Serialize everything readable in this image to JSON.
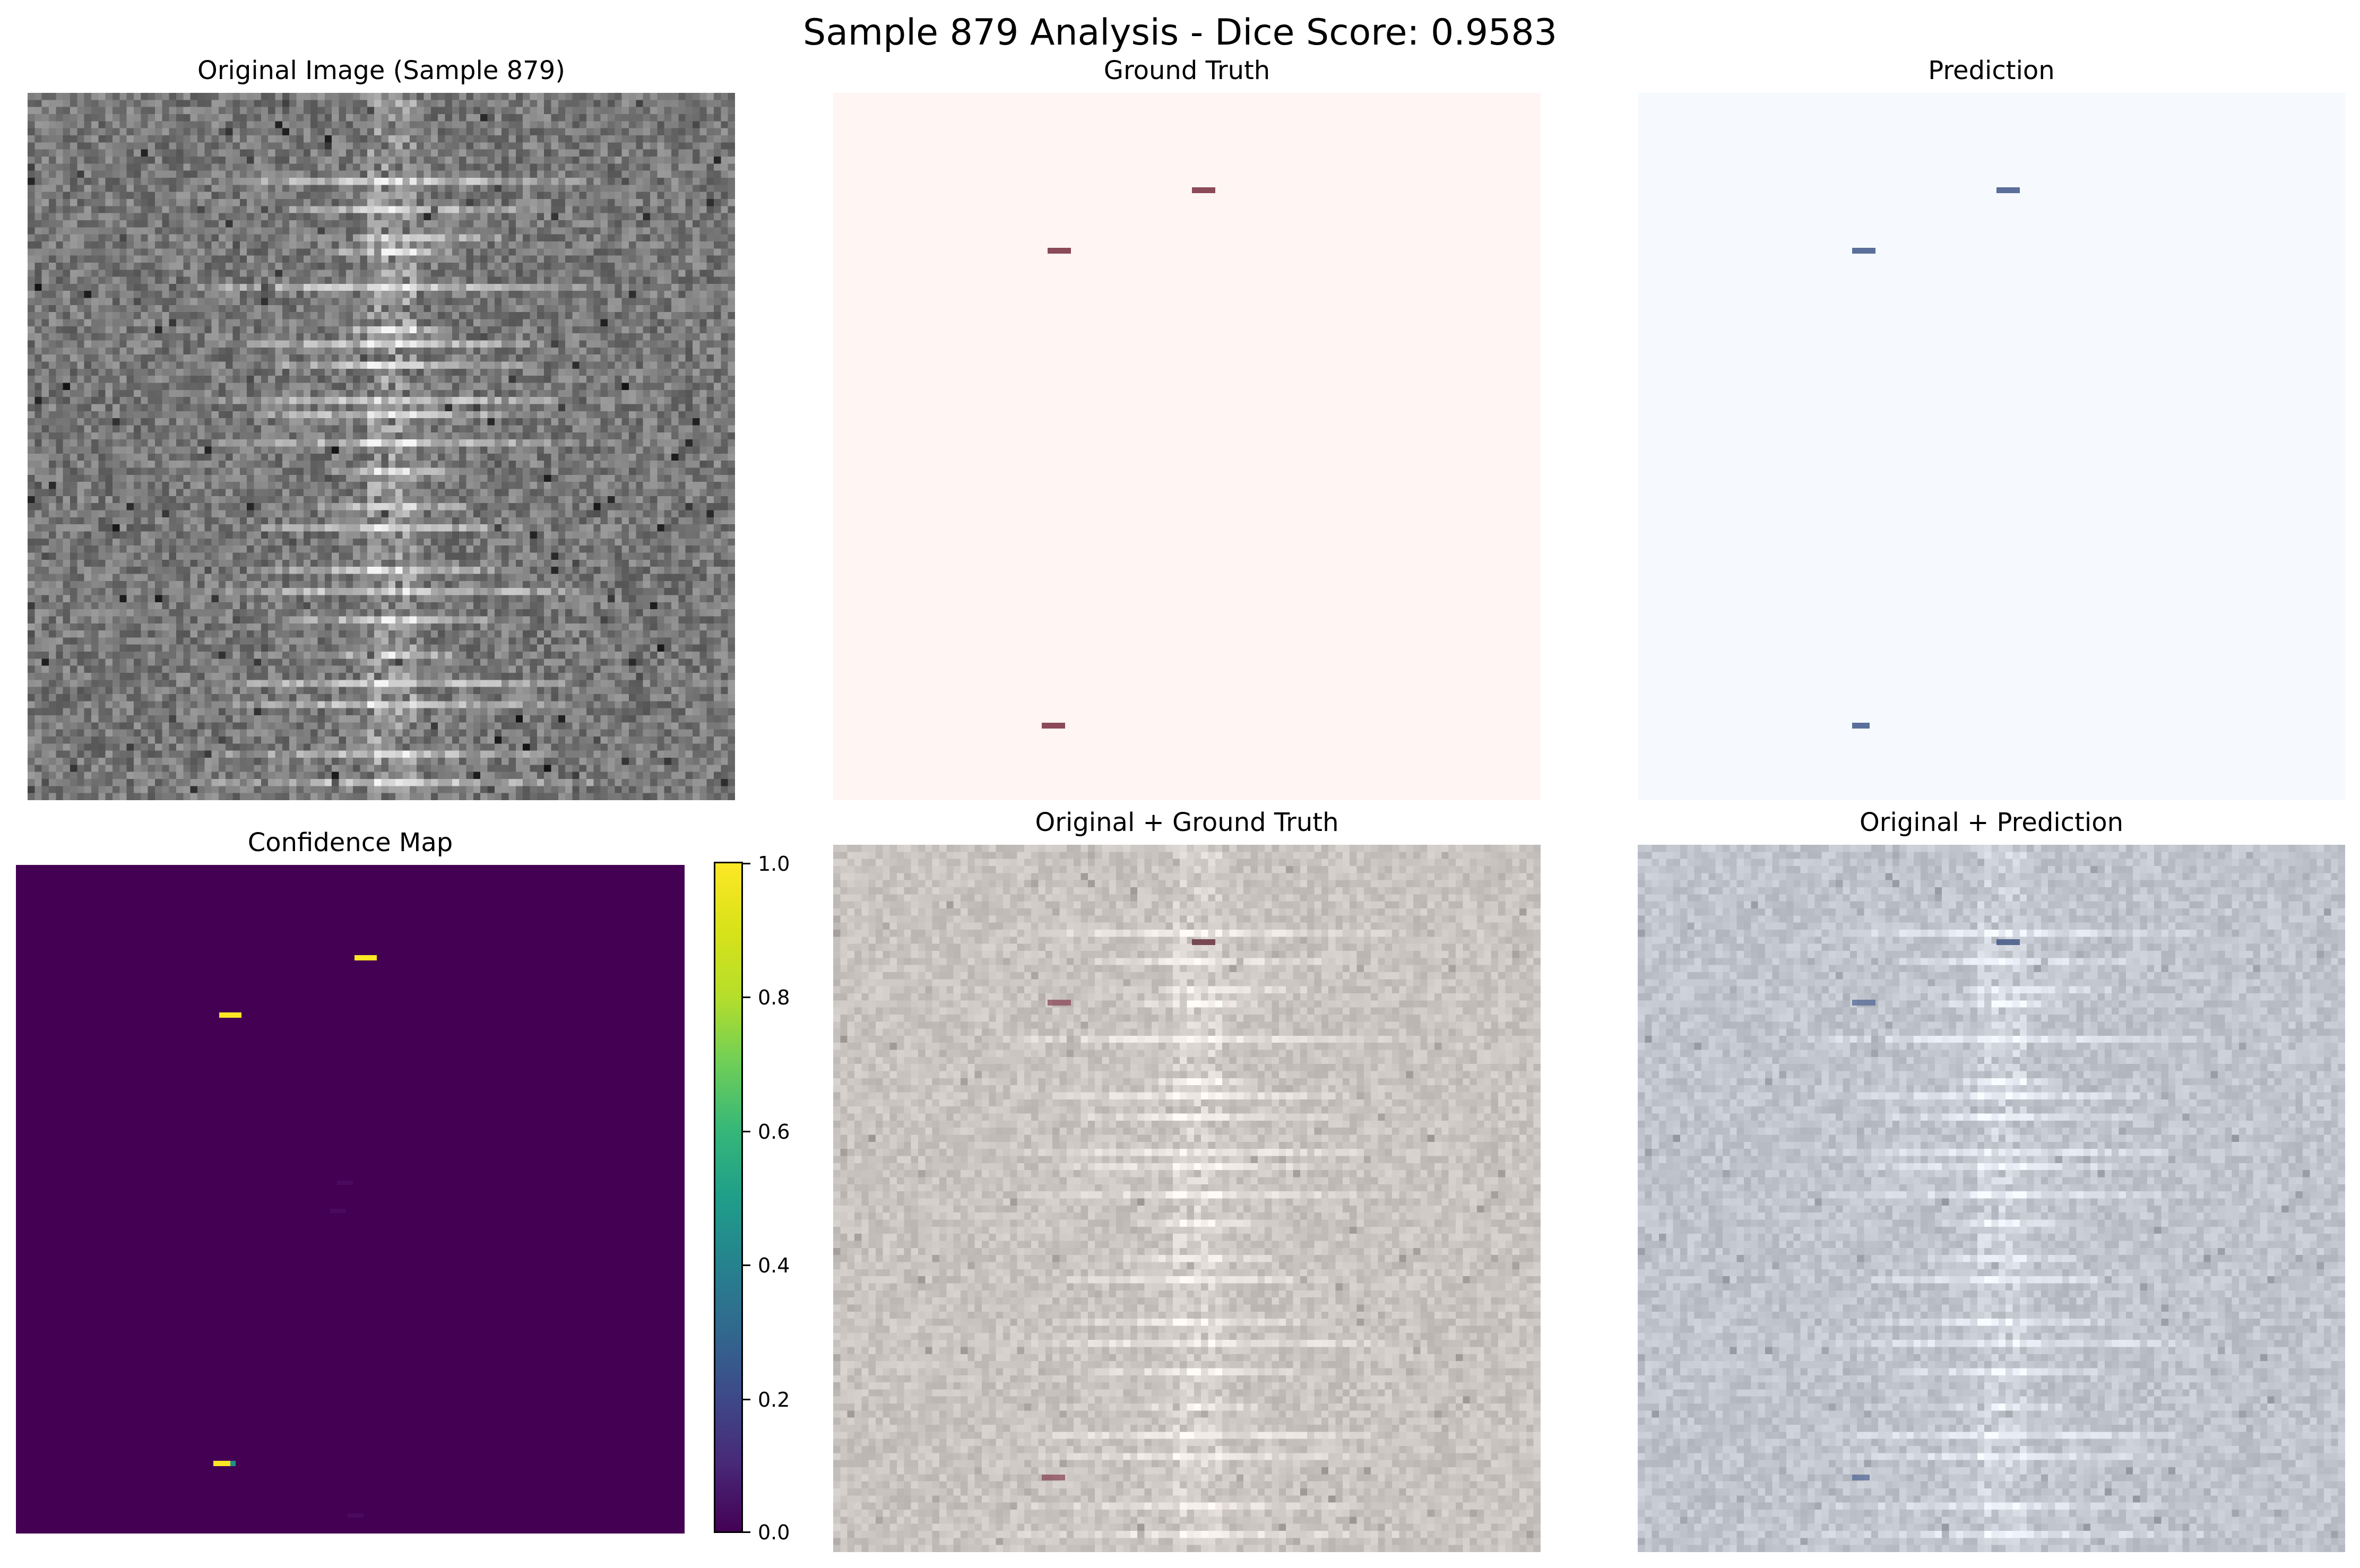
{
  "figure": {
    "title": "Sample 879 Analysis - Dice Score: 0.9583"
  },
  "panels": {
    "original": {
      "title": "Original Image (Sample 879)"
    },
    "ground_truth": {
      "title": "Ground Truth"
    },
    "prediction": {
      "title": "Prediction"
    },
    "confidence": {
      "title": "Confidence Map"
    },
    "overlay_gt": {
      "title": "Original + Ground Truth"
    },
    "overlay_pred": {
      "title": "Original + Prediction"
    }
  },
  "colorbar": {
    "colormap": "viridis",
    "range": [
      0.0,
      1.0
    ],
    "ticks": [
      "1.0",
      "0.8",
      "0.6",
      "0.4",
      "0.2",
      "0.0"
    ]
  },
  "colors": {
    "ground_truth_mark": "#8b4a58",
    "ground_truth_bg": "#fff5f3",
    "prediction_mark": "#5a6f9a",
    "prediction_bg": "#f6fafe",
    "confidence_bg": "#440154",
    "confidence_high": "#fde725"
  }
}
